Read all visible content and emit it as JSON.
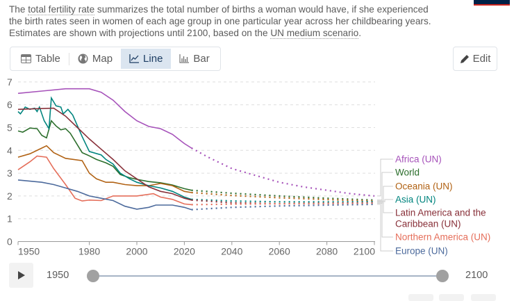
{
  "description": {
    "pre": "The ",
    "link1": "total fertility rate",
    "mid": " summarizes the total number of births a woman would have, if she experienced the birth rates seen in women of each age group in one particular year across her childbearing years. Estimates are shown with projections until 2100, based on the ",
    "link2": "UN medium scenario",
    "post": "."
  },
  "tabs": [
    {
      "label": "Table",
      "icon": "table-icon",
      "active": false
    },
    {
      "label": "Map",
      "icon": "globe-icon",
      "active": false
    },
    {
      "label": "Line",
      "icon": "line-chart-icon",
      "active": true
    },
    {
      "label": "Bar",
      "icon": "bar-chart-icon",
      "active": false
    }
  ],
  "edit_label": "Edit",
  "timeline": {
    "start": "1950",
    "end": "2100"
  },
  "chart_data": {
    "type": "line",
    "xlim": [
      1950,
      2100
    ],
    "ylim": [
      0,
      7
    ],
    "x_ticks": [
      1950,
      1980,
      2000,
      2020,
      2040,
      2060,
      2080,
      2100
    ],
    "y_ticks": [
      0,
      1,
      2,
      3,
      4,
      5,
      6,
      7
    ],
    "grid": "horizontal dashed",
    "legend_placement": "right",
    "projection_start": 2023,
    "series": [
      {
        "name": "Africa (UN)",
        "color": "#a652ba",
        "points": [
          [
            1950,
            6.5
          ],
          [
            1960,
            6.6
          ],
          [
            1970,
            6.7
          ],
          [
            1980,
            6.7
          ],
          [
            1985,
            6.55
          ],
          [
            1990,
            6.2
          ],
          [
            1995,
            5.7
          ],
          [
            2000,
            5.3
          ],
          [
            2005,
            5.05
          ],
          [
            2010,
            4.95
          ],
          [
            2015,
            4.7
          ],
          [
            2020,
            4.3
          ],
          [
            2023,
            4.1
          ],
          [
            2030,
            3.7
          ],
          [
            2040,
            3.2
          ],
          [
            2050,
            2.9
          ],
          [
            2060,
            2.6
          ],
          [
            2070,
            2.4
          ],
          [
            2080,
            2.25
          ],
          [
            2090,
            2.1
          ],
          [
            2100,
            2.0
          ]
        ]
      },
      {
        "name": "World",
        "color": "#2c6e2c",
        "points": [
          [
            1950,
            4.85
          ],
          [
            1952,
            4.8
          ],
          [
            1955,
            4.98
          ],
          [
            1958,
            4.95
          ],
          [
            1960,
            4.66
          ],
          [
            1962,
            4.55
          ],
          [
            1964,
            5.3
          ],
          [
            1966,
            5.07
          ],
          [
            1968,
            4.9
          ],
          [
            1970,
            4.95
          ],
          [
            1972,
            4.75
          ],
          [
            1977,
            3.9
          ],
          [
            1980,
            3.76
          ],
          [
            1983,
            3.6
          ],
          [
            1987,
            3.45
          ],
          [
            1990,
            3.3
          ],
          [
            1993,
            2.94
          ],
          [
            1997,
            2.8
          ],
          [
            2000,
            2.73
          ],
          [
            2005,
            2.63
          ],
          [
            2010,
            2.58
          ],
          [
            2015,
            2.48
          ],
          [
            2020,
            2.32
          ],
          [
            2023,
            2.25
          ],
          [
            2040,
            2.12
          ],
          [
            2060,
            2.0
          ],
          [
            2080,
            1.9
          ],
          [
            2100,
            1.82
          ]
        ]
      },
      {
        "name": "Oceania (UN)",
        "color": "#b16214",
        "points": [
          [
            1950,
            3.7
          ],
          [
            1955,
            3.85
          ],
          [
            1960,
            4.1
          ],
          [
            1962,
            4.2
          ],
          [
            1965,
            3.9
          ],
          [
            1970,
            3.65
          ],
          [
            1977,
            3.55
          ],
          [
            1980,
            3.0
          ],
          [
            1983,
            2.75
          ],
          [
            1987,
            2.6
          ],
          [
            1990,
            2.6
          ],
          [
            1995,
            2.5
          ],
          [
            2000,
            2.45
          ],
          [
            2005,
            2.45
          ],
          [
            2010,
            2.55
          ],
          [
            2015,
            2.45
          ],
          [
            2020,
            2.2
          ],
          [
            2023,
            2.15
          ],
          [
            2040,
            2.02
          ],
          [
            2060,
            1.92
          ],
          [
            2080,
            1.84
          ],
          [
            2100,
            1.78
          ]
        ]
      },
      {
        "name": "Asia (UN)",
        "color": "#00847e",
        "points": [
          [
            1950,
            5.7
          ],
          [
            1951,
            5.6
          ],
          [
            1953,
            5.9
          ],
          [
            1955,
            5.8
          ],
          [
            1957,
            5.85
          ],
          [
            1958,
            5.7
          ],
          [
            1959,
            5.9
          ],
          [
            1961,
            5.3
          ],
          [
            1963,
            4.95
          ],
          [
            1964,
            6.3
          ],
          [
            1966,
            5.95
          ],
          [
            1968,
            5.9
          ],
          [
            1969,
            5.6
          ],
          [
            1971,
            5.8
          ],
          [
            1973,
            5.55
          ],
          [
            1977,
            4.6
          ],
          [
            1980,
            3.95
          ],
          [
            1985,
            3.8
          ],
          [
            1987,
            3.6
          ],
          [
            1990,
            3.4
          ],
          [
            1993,
            3.0
          ],
          [
            1997,
            2.75
          ],
          [
            2000,
            2.6
          ],
          [
            2005,
            2.45
          ],
          [
            2010,
            2.35
          ],
          [
            2015,
            2.2
          ],
          [
            2020,
            1.95
          ],
          [
            2023,
            1.85
          ],
          [
            2040,
            1.78
          ],
          [
            2060,
            1.74
          ],
          [
            2080,
            1.74
          ],
          [
            2100,
            1.75
          ]
        ]
      },
      {
        "name": "Latin America and the Caribbean (UN)",
        "color": "#883039",
        "points": [
          [
            1950,
            5.8
          ],
          [
            1965,
            5.85
          ],
          [
            1970,
            5.5
          ],
          [
            1975,
            5.0
          ],
          [
            1980,
            4.5
          ],
          [
            1985,
            4.05
          ],
          [
            1990,
            3.6
          ],
          [
            1995,
            3.1
          ],
          [
            2000,
            2.75
          ],
          [
            2005,
            2.4
          ],
          [
            2010,
            2.2
          ],
          [
            2015,
            2.1
          ],
          [
            2020,
            1.9
          ],
          [
            2023,
            1.82
          ],
          [
            2040,
            1.7
          ],
          [
            2060,
            1.66
          ],
          [
            2080,
            1.68
          ],
          [
            2100,
            1.7
          ]
        ]
      },
      {
        "name": "Northern America (UN)",
        "color": "#e56e5a",
        "points": [
          [
            1950,
            3.15
          ],
          [
            1955,
            3.5
          ],
          [
            1958,
            3.75
          ],
          [
            1962,
            3.7
          ],
          [
            1965,
            3.2
          ],
          [
            1970,
            2.5
          ],
          [
            1974,
            1.9
          ],
          [
            1977,
            1.78
          ],
          [
            1980,
            1.82
          ],
          [
            1985,
            1.8
          ],
          [
            1990,
            2.0
          ],
          [
            1995,
            2.0
          ],
          [
            2000,
            2.0
          ],
          [
            2007,
            2.1
          ],
          [
            2010,
            1.95
          ],
          [
            2015,
            1.85
          ],
          [
            2020,
            1.65
          ],
          [
            2023,
            1.62
          ],
          [
            2040,
            1.64
          ],
          [
            2060,
            1.66
          ],
          [
            2080,
            1.67
          ],
          [
            2100,
            1.68
          ]
        ]
      },
      {
        "name": "Europe (UN)",
        "color": "#4c6a9c",
        "points": [
          [
            1950,
            2.7
          ],
          [
            1960,
            2.6
          ],
          [
            1965,
            2.5
          ],
          [
            1970,
            2.35
          ],
          [
            1975,
            2.2
          ],
          [
            1980,
            2.0
          ],
          [
            1985,
            1.9
          ],
          [
            1990,
            1.8
          ],
          [
            1995,
            1.55
          ],
          [
            2000,
            1.42
          ],
          [
            2005,
            1.5
          ],
          [
            2008,
            1.6
          ],
          [
            2015,
            1.6
          ],
          [
            2020,
            1.5
          ],
          [
            2023,
            1.4
          ],
          [
            2040,
            1.5
          ],
          [
            2060,
            1.56
          ],
          [
            2080,
            1.6
          ],
          [
            2100,
            1.63
          ]
        ]
      }
    ]
  }
}
